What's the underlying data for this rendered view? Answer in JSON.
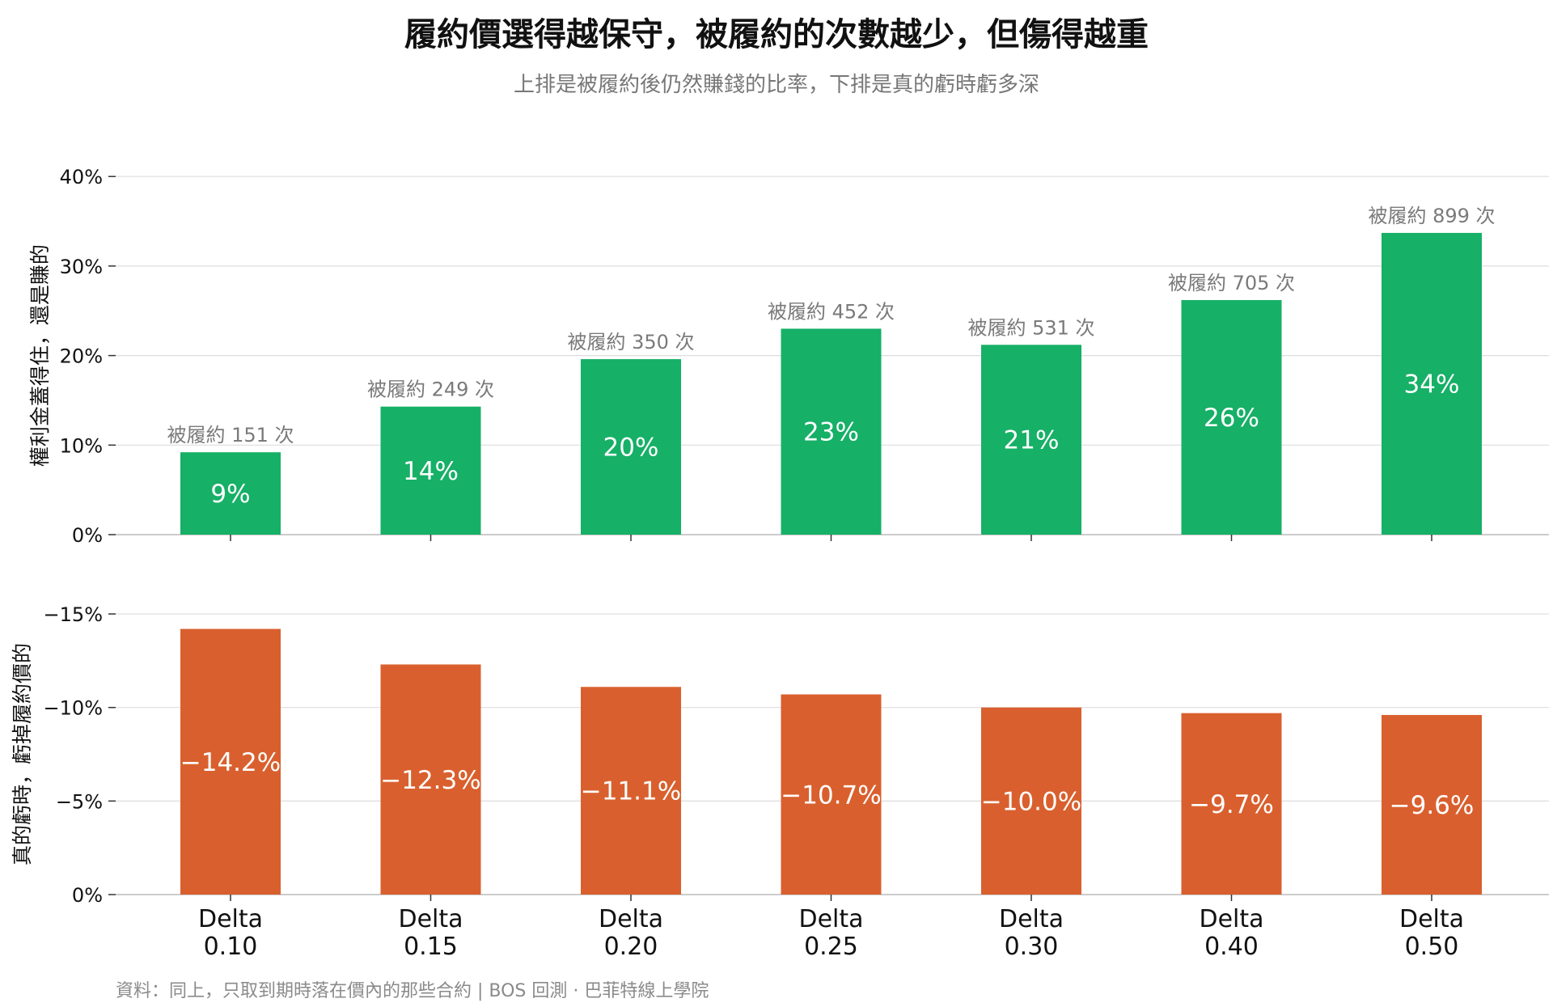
{
  "title": "履約價選得越保守，被履約的次數越少，但傷得越重",
  "subtitle": "上排是被履約後仍然賺錢的比率，下排是真的虧時虧多深",
  "footer": "資料：同上，只取到期時落在價內的那些合約 | BOS 回測 ·  巴菲特線上學院",
  "colors": {
    "top_bar": "#16b067",
    "bottom_bar": "#d9602e",
    "grid": "#dddddd",
    "axis": "#bbbbbb"
  },
  "chart_data": [
    {
      "type": "bar",
      "categories": [
        "Delta\n0.10",
        "Delta\n0.15",
        "Delta\n0.20",
        "Delta\n0.25",
        "Delta\n0.30",
        "Delta\n0.40",
        "Delta\n0.50"
      ],
      "ylabel": "權利金蓋得住，還是賺的",
      "ylim": [
        0,
        40
      ],
      "yticks": [
        "0%",
        "10%",
        "20%",
        "30%",
        "40%"
      ],
      "values": [
        9.2,
        14.3,
        19.6,
        23.0,
        21.2,
        26.2,
        33.7
      ],
      "value_labels": [
        "9%",
        "14%",
        "20%",
        "23%",
        "21%",
        "26%",
        "34%"
      ],
      "annotations": [
        "被履約 151 次",
        "被履約 249 次",
        "被履約 350 次",
        "被履約 452 次",
        "被履約 531 次",
        "被履約 705 次",
        "被履約 899 次"
      ],
      "grid": true
    },
    {
      "type": "bar",
      "categories": [
        "Delta\n0.10",
        "Delta\n0.15",
        "Delta\n0.20",
        "Delta\n0.25",
        "Delta\n0.30",
        "Delta\n0.40",
        "Delta\n0.50"
      ],
      "ylabel": "真的虧時，虧掉履約價的",
      "ylim": [
        0,
        -15
      ],
      "yticks": [
        "0%",
        "−5%",
        "−10%",
        "−15%"
      ],
      "values": [
        -14.2,
        -12.3,
        -11.1,
        -10.7,
        -10.0,
        -9.7,
        -9.6
      ],
      "value_labels": [
        "−14.2%",
        "−12.3%",
        "−11.1%",
        "−10.7%",
        "−10.0%",
        "−9.7%",
        "−9.6%"
      ],
      "grid": true
    }
  ]
}
